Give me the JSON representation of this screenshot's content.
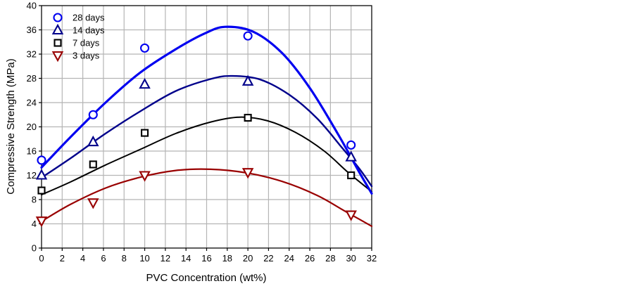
{
  "figure": {
    "background": "#ffffff",
    "grid_color": "#b5b5b5",
    "axis_color": "#000000"
  },
  "chart_data": {
    "type": "scatter",
    "title": "",
    "xlabel": "PVC Concentration (wt%)",
    "ylabel": "Compressive Strength (MPa)",
    "xlim": [
      0,
      32
    ],
    "ylim": [
      0,
      40
    ],
    "xticks": [
      0,
      2,
      4,
      6,
      8,
      10,
      12,
      14,
      16,
      18,
      20,
      22,
      24,
      26,
      28,
      30,
      32
    ],
    "yticks": [
      0,
      4,
      8,
      12,
      16,
      20,
      24,
      28,
      32,
      36,
      40
    ],
    "grid": true,
    "legend_position": "upper-left",
    "series": [
      {
        "name": "28 days",
        "color": "#0000f0",
        "marker": "circle",
        "marker_fill": "#ffffff",
        "marker_size": 11,
        "line_width": 3.2,
        "points": {
          "x": [
            0,
            5,
            10,
            20,
            30
          ],
          "y": [
            14.5,
            22,
            33,
            35,
            17
          ]
        },
        "curve": {
          "x": [
            0,
            2.8,
            6.2,
            9.6,
            13,
            15.8,
            17.8,
            20.5,
            23.3,
            26,
            28.7,
            30.8,
            32
          ],
          "y": [
            13.3,
            18.3,
            24,
            29,
            32.8,
            35.4,
            36.5,
            35.7,
            32.2,
            26.4,
            18.9,
            12.5,
            9
          ]
        }
      },
      {
        "name": "14 days",
        "color": "#00008b",
        "marker": "triangle-up",
        "marker_fill": "#ffffff",
        "marker_size": 12,
        "line_width": 2.4,
        "points": {
          "x": [
            0,
            5,
            10,
            20,
            30
          ],
          "y": [
            12,
            17.5,
            27,
            27.5,
            15
          ]
        },
        "curve": {
          "x": [
            0,
            2.8,
            6.2,
            9.6,
            13,
            16.4,
            18.5,
            21.2,
            24,
            26.7,
            29.1,
            30.8,
            32
          ],
          "y": [
            11.6,
            14.8,
            18.9,
            22.6,
            25.9,
            27.9,
            28.4,
            27.8,
            25.3,
            21.4,
            16.6,
            13.1,
            10.2
          ]
        }
      },
      {
        "name": "7 days",
        "color": "#000000",
        "marker": "square",
        "marker_fill": "#ffffff",
        "marker_size": 9,
        "line_width": 2,
        "points": {
          "x": [
            0,
            5,
            10,
            20,
            30
          ],
          "y": [
            9.5,
            13.8,
            19,
            21.5,
            12
          ]
        },
        "curve": {
          "x": [
            0,
            2.8,
            6.2,
            9.6,
            13,
            16.4,
            19.2,
            21.9,
            24.6,
            27.4,
            29.7,
            32
          ],
          "y": [
            8.8,
            10.9,
            13.7,
            16.3,
            18.9,
            20.8,
            21.6,
            21,
            19.1,
            16,
            12.5,
            9.3
          ]
        }
      },
      {
        "name": "3 days",
        "color": "#990000",
        "marker": "triangle-down",
        "marker_fill": "#ffffff",
        "marker_size": 12,
        "line_width": 2.2,
        "points": {
          "x": [
            0,
            5,
            10,
            20,
            30
          ],
          "y": [
            4.5,
            7.5,
            12,
            12.5,
            5.5
          ]
        },
        "curve": {
          "x": [
            0,
            2.8,
            6.2,
            9.6,
            13,
            16.4,
            19.9,
            23.3,
            26.7,
            29.4,
            32
          ],
          "y": [
            4.4,
            7.2,
            9.9,
            11.7,
            12.8,
            13,
            12.4,
            11,
            8.7,
            6.1,
            3.6
          ]
        }
      }
    ]
  }
}
